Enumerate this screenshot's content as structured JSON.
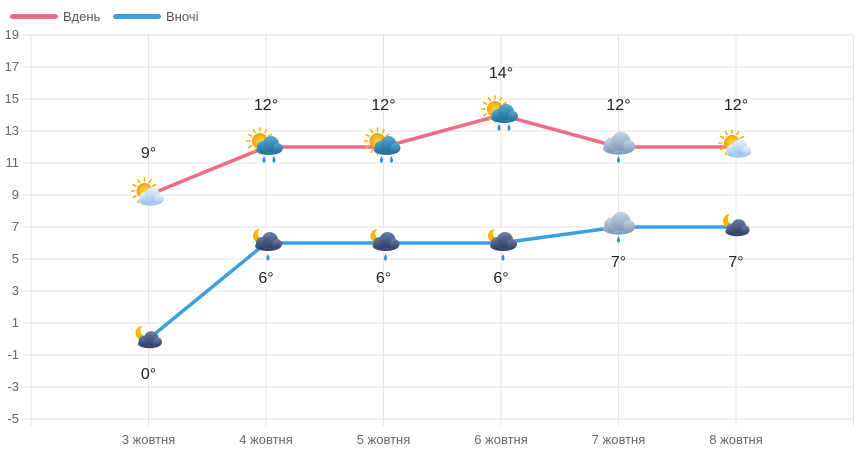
{
  "chart_data": {
    "type": "line",
    "categories": [
      "3 жовтня",
      "4 жовтня",
      "5 жовтня",
      "6 жовтня",
      "7 жовтня",
      "8 жовтня"
    ],
    "ylim": [
      -5,
      19
    ],
    "yticks": [
      19,
      17,
      15,
      13,
      11,
      9,
      7,
      5,
      3,
      1,
      -1,
      -3,
      -5
    ],
    "grid": true,
    "legend_position": "top-left",
    "series": [
      {
        "name": "Вдень",
        "color": "#f06a86",
        "values": [
          9,
          12,
          12,
          14,
          12,
          12
        ],
        "labels": [
          "9°",
          "12°",
          "12°",
          "14°",
          "12°",
          "12°"
        ],
        "icons": [
          "sun-cloud-icon",
          "sun-cloud-rain-icon",
          "sun-cloud-rain-icon",
          "sun-cloud-rain-icon",
          "cloud-rain-icon",
          "sun-cloud-icon"
        ]
      },
      {
        "name": "Вночі",
        "color": "#3d9fe0",
        "values": [
          0,
          6,
          6,
          6,
          7,
          7
        ],
        "labels": [
          "0°",
          "6°",
          "6°",
          "6°",
          "7°",
          "7°"
        ],
        "icons": [
          "moon-cloud-icon",
          "moon-cloud-rain-icon",
          "moon-cloud-rain-icon",
          "moon-cloud-rain-icon",
          "cloud-rain-icon",
          "moon-cloud-icon"
        ]
      }
    ]
  }
}
